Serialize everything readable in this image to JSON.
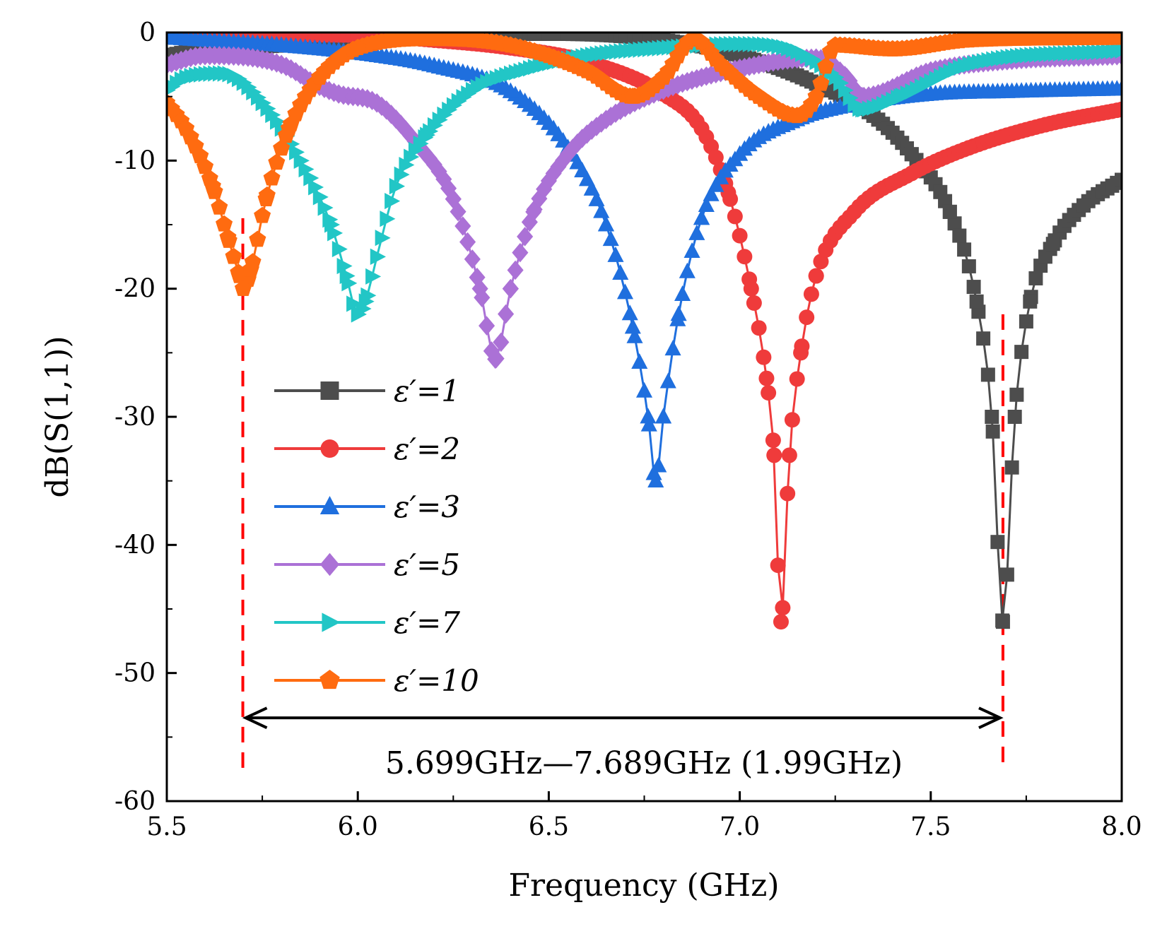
{
  "chart_data": {
    "type": "line",
    "title": "",
    "xlabel": "Frequency (GHz)",
    "ylabel": "dB(S(1,1))",
    "xlim": [
      5.5,
      8.0
    ],
    "ylim": [
      -60,
      0
    ],
    "xticks": [
      5.5,
      6.0,
      6.5,
      7.0,
      7.5,
      8.0
    ],
    "xtick_labels": [
      "5.5",
      "6.0",
      "6.5",
      "7.0",
      "7.5",
      "8.0"
    ],
    "yticks": [
      0,
      -10,
      -20,
      -30,
      -40,
      -50,
      -60
    ],
    "ytick_labels": [
      "0",
      "-10",
      "-20",
      "-30",
      "-40",
      "-50",
      "-60"
    ],
    "legend_position": "lower-left",
    "series": [
      {
        "name": "ε′=1",
        "color": "#4d4d4d",
        "marker": "square",
        "x": [
          5.5,
          5.6,
          5.7,
          5.8,
          6.0,
          6.2,
          6.5,
          6.8,
          7.0,
          7.2,
          7.35,
          7.45,
          7.55,
          7.62,
          7.66,
          7.689,
          7.72,
          7.76,
          7.82,
          7.9,
          8.0
        ],
        "y": [
          -1.8,
          -1.3,
          -1.2,
          -1.0,
          -0.6,
          -0.3,
          -0.1,
          -0.6,
          -1.8,
          -4.0,
          -6.5,
          -9.5,
          -14.0,
          -21.0,
          -30.0,
          -46.0,
          -30.0,
          -21.0,
          -16.5,
          -13.5,
          -11.5
        ]
      },
      {
        "name": "ε′=2",
        "color": "#ef3b3b",
        "marker": "circle",
        "x": [
          5.5,
          5.8,
          6.0,
          6.2,
          6.4,
          6.6,
          6.8,
          6.9,
          6.97,
          7.03,
          7.07,
          7.09,
          7.108,
          7.13,
          7.16,
          7.2,
          7.3,
          7.45,
          7.6,
          7.8,
          8.0
        ],
        "y": [
          -0.3,
          -0.2,
          -0.2,
          -0.6,
          -1.2,
          -2.3,
          -4.8,
          -7.5,
          -12.5,
          -20.0,
          -27.0,
          -33.0,
          -46.0,
          -33.0,
          -25.0,
          -19.0,
          -14.0,
          -11.0,
          -9.0,
          -7.2,
          -6.0
        ]
      },
      {
        "name": "ε′=3",
        "color": "#1f6fde",
        "marker": "triangle-up",
        "x": [
          5.5,
          5.8,
          6.0,
          6.2,
          6.4,
          6.55,
          6.65,
          6.72,
          6.76,
          6.78,
          6.8,
          6.84,
          6.9,
          7.0,
          7.15,
          7.3,
          7.5,
          7.7,
          8.0
        ],
        "y": [
          -0.4,
          -1.0,
          -1.6,
          -2.6,
          -4.6,
          -9.0,
          -15.0,
          -23.0,
          -30.0,
          -35.0,
          -30.0,
          -22.0,
          -14.5,
          -9.5,
          -6.8,
          -5.6,
          -4.8,
          -4.6,
          -4.4
        ]
      },
      {
        "name": "ε′=5",
        "color": "#ab71d6",
        "marker": "diamond",
        "x": [
          5.5,
          5.6,
          5.8,
          5.9,
          5.95,
          6.05,
          6.15,
          6.25,
          6.32,
          6.36,
          6.4,
          6.46,
          6.55,
          6.65,
          6.8,
          7.0,
          7.2,
          7.28,
          7.32,
          7.5,
          7.7,
          8.0
        ],
        "y": [
          -2.5,
          -1.8,
          -2.5,
          -4.2,
          -4.8,
          -5.5,
          -8.5,
          -13.0,
          -20.0,
          -25.5,
          -20.0,
          -14.0,
          -9.5,
          -6.8,
          -4.5,
          -2.8,
          -2.0,
          -3.5,
          -5.0,
          -3.0,
          -2.2,
          -1.8
        ]
      },
      {
        "name": "ε′=7",
        "color": "#22c6c6",
        "marker": "triangle-right",
        "x": [
          5.5,
          5.55,
          5.65,
          5.75,
          5.85,
          5.93,
          5.97,
          6.0,
          6.02,
          6.05,
          6.1,
          6.18,
          6.3,
          6.45,
          6.6,
          6.8,
          7.0,
          7.15,
          7.25,
          7.32,
          7.42,
          7.6,
          8.0
        ],
        "y": [
          -4.5,
          -3.5,
          -3.2,
          -5.5,
          -10.0,
          -15.0,
          -19.0,
          -22.0,
          -21.0,
          -17.5,
          -12.0,
          -8.0,
          -4.5,
          -2.8,
          -1.8,
          -1.2,
          -0.9,
          -1.5,
          -3.5,
          -6.0,
          -5.0,
          -2.5,
          -1.4
        ]
      },
      {
        "name": "ε′=10",
        "color": "#ff6b10",
        "marker": "pentagon",
        "x": [
          5.5,
          5.55,
          5.62,
          5.66,
          5.69,
          5.7,
          5.72,
          5.76,
          5.82,
          5.9,
          6.0,
          6.2,
          6.4,
          6.6,
          6.72,
          6.8,
          6.88,
          6.95,
          7.05,
          7.15,
          7.2,
          7.25,
          7.4,
          7.6,
          8.0
        ],
        "y": [
          -5.5,
          -7.5,
          -12.0,
          -16.0,
          -19.0,
          -20.0,
          -18.5,
          -13.0,
          -7.5,
          -3.5,
          -1.2,
          -0.5,
          -1.0,
          -3.0,
          -5.0,
          -3.5,
          -0.5,
          -2.5,
          -5.0,
          -6.5,
          -5.0,
          -1.0,
          -1.3,
          -0.6,
          -0.4
        ]
      }
    ],
    "markers": {
      "vlines": [
        5.699,
        7.689
      ],
      "vline_color": "#ff0000",
      "arrow": {
        "from": 5.699,
        "to": 7.689,
        "y": -53.5
      },
      "text": "5.699GHz—7.689GHz   (1.99GHz)"
    }
  }
}
